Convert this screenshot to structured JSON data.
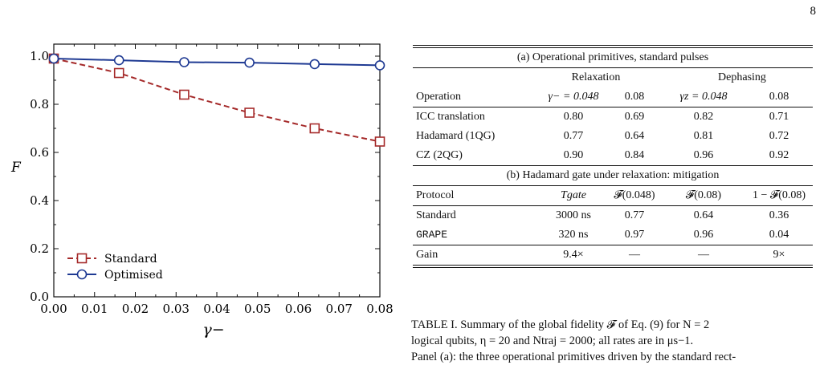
{
  "page_number": "8",
  "chart_data": {
    "type": "line",
    "xlabel": "γ−",
    "ylabel": "F",
    "xlim": [
      0.0,
      0.08
    ],
    "ylim": [
      0.0,
      1.05
    ],
    "x_ticks": [
      "0.00",
      "0.01",
      "0.02",
      "0.03",
      "0.04",
      "0.05",
      "0.06",
      "0.07",
      "0.08"
    ],
    "y_ticks": [
      "0.0",
      "0.2",
      "0.4",
      "0.6",
      "0.8",
      "1.0"
    ],
    "legend_position": "lower-left",
    "grid": false,
    "series": [
      {
        "name": "Standard",
        "color": "#a52a2a",
        "style": "dashed",
        "marker": "square",
        "x": [
          0.0,
          0.016,
          0.032,
          0.048,
          0.064,
          0.08
        ],
        "y": [
          0.99,
          0.93,
          0.84,
          0.765,
          0.7,
          0.645
        ]
      },
      {
        "name": "Optimised",
        "color": "#1f3a93",
        "style": "solid",
        "marker": "circle",
        "x": [
          0.0,
          0.016,
          0.032,
          0.048,
          0.064,
          0.08
        ],
        "y": [
          0.99,
          0.983,
          0.975,
          0.973,
          0.967,
          0.962
        ]
      }
    ]
  },
  "table": {
    "panel_a_title": "(a) Operational primitives, standard pulses",
    "group_relaxation": "Relaxation",
    "group_dephasing": "Dephasing",
    "a_headers": [
      "Operation",
      "γ− = 0.048",
      "0.08",
      "γz = 0.048",
      "0.08"
    ],
    "a_rows": [
      [
        "ICC translation",
        "0.80",
        "0.69",
        "0.82",
        "0.71"
      ],
      [
        "Hadamard (1QG)",
        "0.77",
        "0.64",
        "0.81",
        "0.72"
      ],
      [
        "CZ (2QG)",
        "0.90",
        "0.84",
        "0.96",
        "0.92"
      ]
    ],
    "panel_b_title": "(b) Hadamard gate under relaxation: mitigation",
    "b_headers": [
      "Protocol",
      "Tgate",
      "𝓕(0.048)",
      "𝓕(0.08)",
      "1 − 𝓕(0.08)"
    ],
    "b_rows": [
      [
        "Standard",
        "3000 ns",
        "0.77",
        "0.64",
        "0.36"
      ],
      [
        "GRAPE",
        "320 ns",
        "0.97",
        "0.96",
        "0.04"
      ],
      [
        "Gain",
        "9.4×",
        "—",
        "—",
        "9×"
      ]
    ]
  },
  "caption": {
    "line1": "TABLE I.  Summary of the global fidelity 𝓕 of Eq. (9) for N = 2",
    "line2": "logical qubits, η = 20 and Ntraj = 2000; all rates are in μs−1.",
    "line3": "Panel (a): the three operational primitives driven by the standard rect-"
  }
}
